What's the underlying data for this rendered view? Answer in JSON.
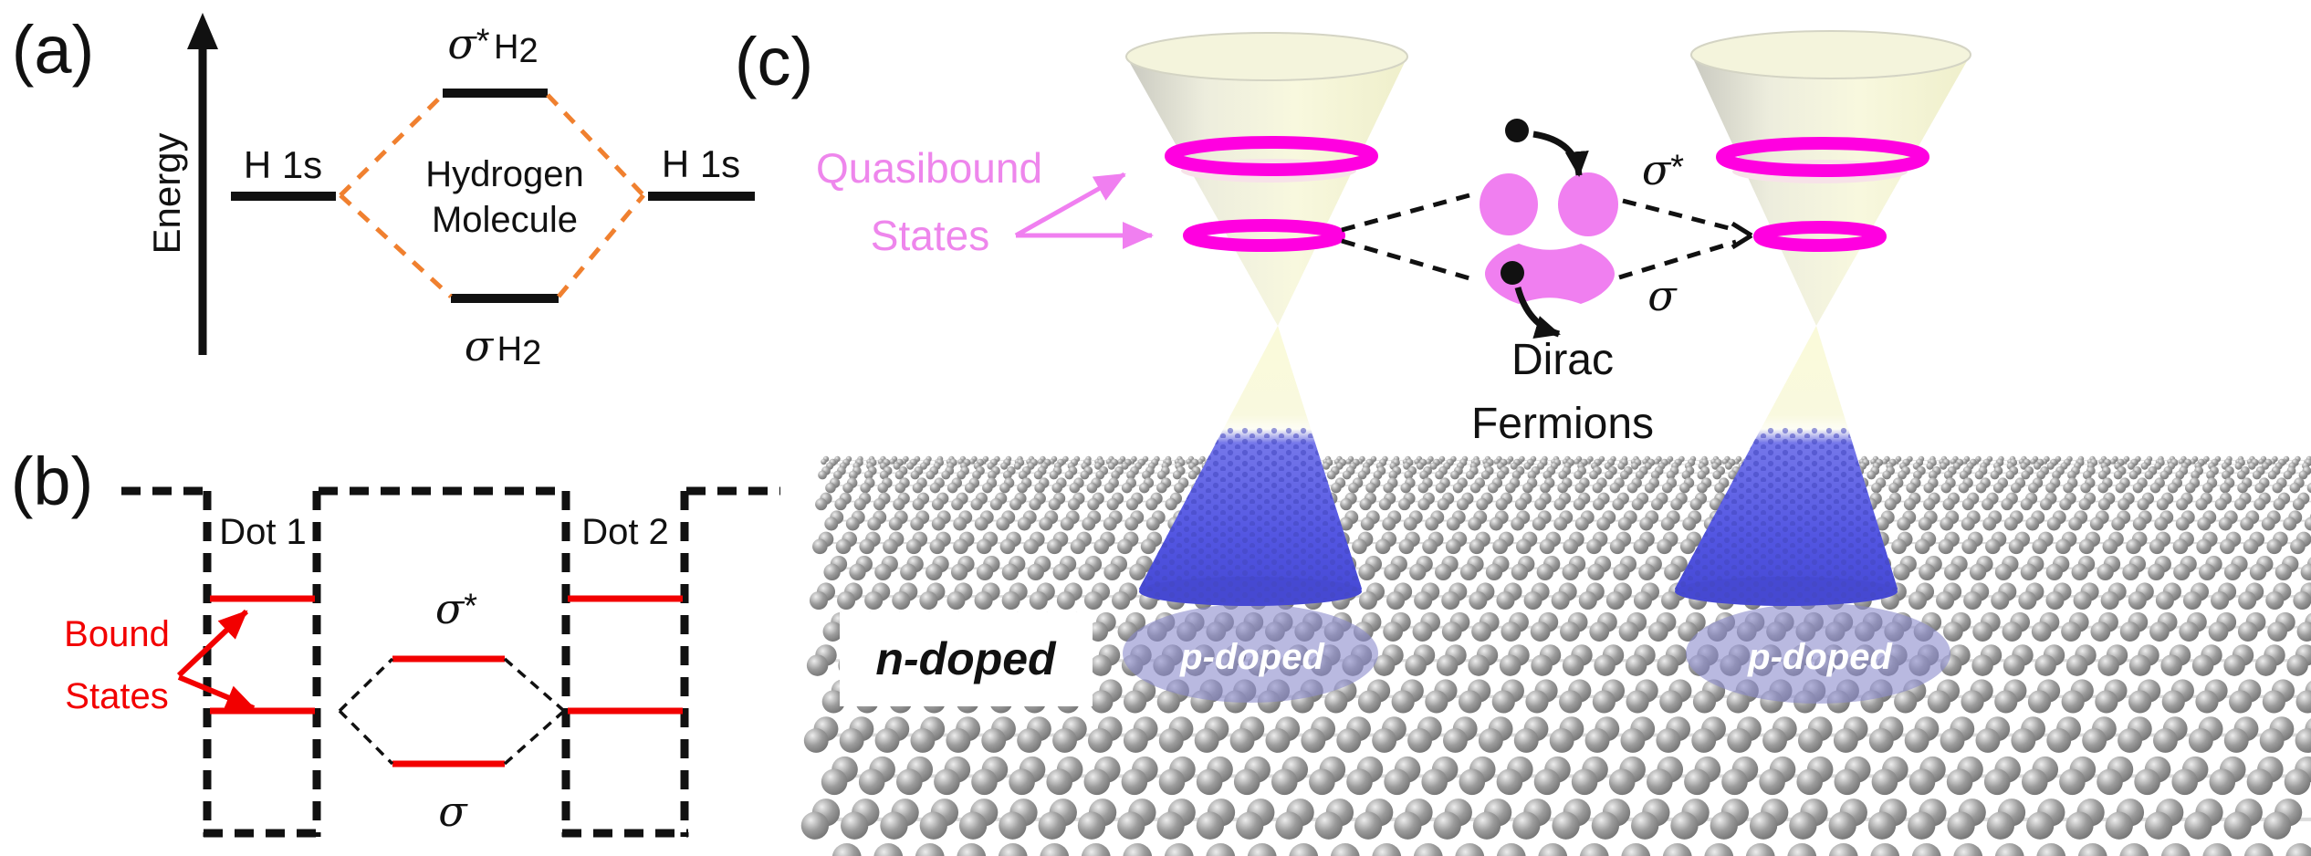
{
  "figure": {
    "panel_a": {
      "label": "(a)",
      "axis_label": "Energy",
      "left_level": "H 1s",
      "right_level": "H 1s",
      "antibonding": {
        "sigma": "σ",
        "sup": "*",
        "mol": "H",
        "sub": "2"
      },
      "bonding": {
        "sigma": "σ",
        "mol": "H",
        "sub": "2"
      },
      "center_line1": "Hydrogen",
      "center_line2": "Molecule"
    },
    "panel_b": {
      "label": "(b)",
      "dot1": "Dot 1",
      "dot2": "Dot 2",
      "bound_line1": "Bound",
      "bound_line2": "States",
      "antibonding": {
        "sigma": "σ",
        "sup": "*"
      },
      "bonding": "σ"
    },
    "panel_c": {
      "label": "(c)",
      "quasibound_line1": "Quasibound",
      "quasibound_line2": "States",
      "antibonding": {
        "sigma": "σ",
        "sup": "*"
      },
      "bonding": "σ",
      "dirac_line1": "Dirac",
      "dirac_line2": "Fermions",
      "n_doped": "n-doped",
      "p_doped_left": "p-doped",
      "p_doped_right": "p-doped"
    },
    "colors": {
      "orange": "#F0802F",
      "red": "#F20000",
      "magenta": "#FF00E0",
      "pink": "#F07FF0",
      "pink_text": "#EE86EC",
      "cream": "#F6F6D9",
      "blue": "#5357E2",
      "lavender": "#8A8ACC",
      "sphere_gray": "#8F8F8F"
    }
  }
}
